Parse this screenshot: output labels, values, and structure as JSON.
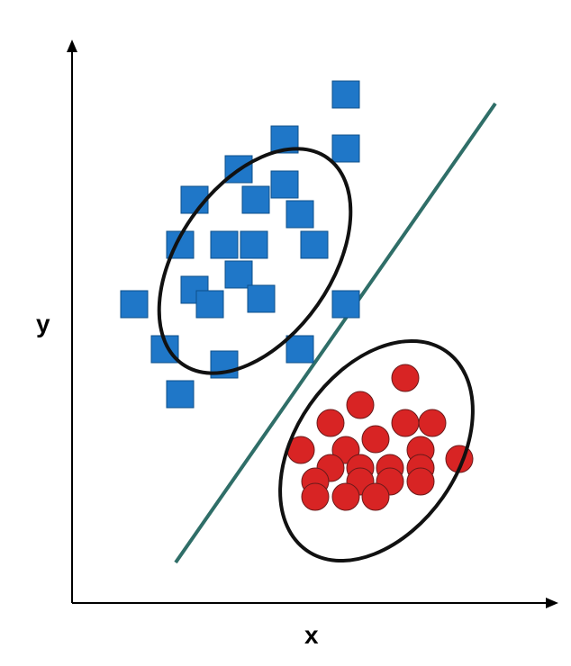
{
  "labels": {
    "x": "x",
    "y": "y"
  },
  "colors": {
    "class_a": "#1f77c8",
    "class_b": "#d82424",
    "boundary": "#2f6e68",
    "ellipse": "#111111",
    "axis": "#000000"
  },
  "chart_data": {
    "type": "scatter",
    "xlabel": "x",
    "ylabel": "y",
    "xlim": [
      0,
      530
    ],
    "ylim": [
      0,
      610
    ],
    "decision_boundary": {
      "from": [
        115,
        45
      ],
      "to": [
        470,
        555
      ]
    },
    "series": [
      {
        "marker": "square",
        "color": "#1f77c8",
        "points": [
          [
            304,
            565
          ],
          [
            236,
            515
          ],
          [
            304,
            505
          ],
          [
            185,
            482
          ],
          [
            236,
            465
          ],
          [
            136,
            448
          ],
          [
            204,
            448
          ],
          [
            253,
            432
          ],
          [
            120,
            398
          ],
          [
            169,
            398
          ],
          [
            202,
            398
          ],
          [
            269,
            398
          ],
          [
            185,
            365
          ],
          [
            136,
            348
          ],
          [
            153,
            332
          ],
          [
            210,
            338
          ],
          [
            69,
            332
          ],
          [
            304,
            332
          ],
          [
            103,
            282
          ],
          [
            253,
            282
          ],
          [
            169,
            265
          ],
          [
            120,
            232
          ]
        ]
      },
      {
        "marker": "circle",
        "color": "#d82424",
        "points": [
          [
            370,
            250
          ],
          [
            320,
            220
          ],
          [
            287,
            200
          ],
          [
            370,
            200
          ],
          [
            400,
            200
          ],
          [
            337,
            182
          ],
          [
            254,
            170
          ],
          [
            304,
            170
          ],
          [
            387,
            170
          ],
          [
            430,
            160
          ],
          [
            287,
            150
          ],
          [
            320,
            150
          ],
          [
            353,
            150
          ],
          [
            387,
            150
          ],
          [
            270,
            135
          ],
          [
            320,
            135
          ],
          [
            353,
            135
          ],
          [
            387,
            135
          ],
          [
            270,
            118
          ],
          [
            304,
            118
          ],
          [
            337,
            118
          ]
        ]
      }
    ]
  }
}
